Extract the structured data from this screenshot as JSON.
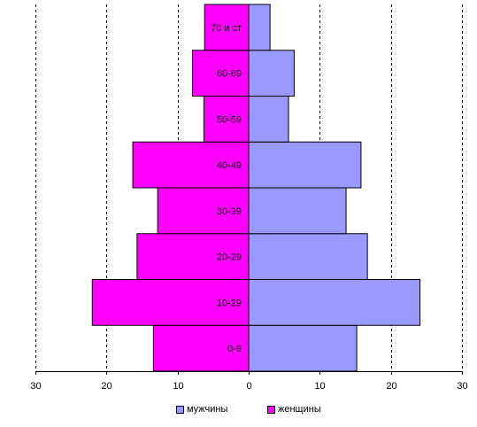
{
  "chart_data": {
    "type": "bar",
    "orientation": "horizontal",
    "title": "",
    "xlabel": "",
    "ylabel": "",
    "categories": [
      "0-9",
      "10-29",
      "20-29",
      "30-39",
      "40-49",
      "50-59",
      "60-69",
      "70 и ст"
    ],
    "series": [
      {
        "name": "мужчины",
        "color": "#9999ff",
        "side": "right",
        "values": [
          15.2,
          24.1,
          16.7,
          13.7,
          15.8,
          5.6,
          6.4,
          3.0
        ]
      },
      {
        "name": "женщины",
        "color": "#ff00ff",
        "side": "left",
        "values": [
          13.4,
          22.0,
          15.7,
          12.8,
          16.3,
          6.3,
          7.9,
          6.2
        ]
      }
    ],
    "xlim": [
      -30,
      30
    ],
    "x_ticks": [
      -30,
      -20,
      -10,
      0,
      10,
      20,
      30
    ],
    "x_tick_labels": [
      "30",
      "20",
      "10",
      "0",
      "10",
      "20",
      "30"
    ],
    "grid": "vertical-dashed",
    "legend_position": "bottom"
  },
  "legend": {
    "male_label": "мужчины",
    "female_label": "женщины",
    "male_color": "#9999ff",
    "female_color": "#ff00ff"
  }
}
